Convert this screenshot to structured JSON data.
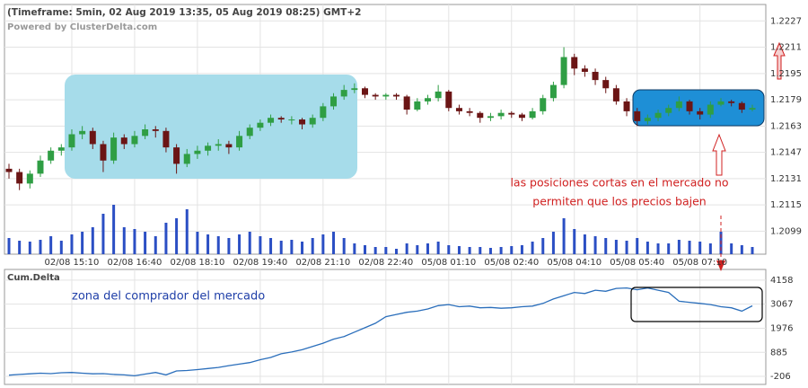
{
  "chart_data": [
    {
      "type": "candlestick",
      "title": "(Timeframe: 5min, 02 Aug 2019 13:35, 05 Aug 2019 08:25) GMT+2",
      "subtitle": "Powered by ClusterDelta.com",
      "annotations": [
        "las posiciones cortas en el mercado no",
        "permiten que los precios bajen"
      ],
      "categories": [
        null,
        null,
        null,
        null,
        null,
        null,
        "02/08 15:10",
        null,
        null,
        null,
        null,
        null,
        "02/08 16:40",
        null,
        null,
        null,
        null,
        null,
        "02/08 18:10",
        null,
        null,
        null,
        null,
        null,
        "02/08 19:40",
        null,
        null,
        null,
        null,
        null,
        "02/08 21:10",
        null,
        null,
        null,
        null,
        null,
        "02/08 22:40",
        null,
        null,
        null,
        null,
        null,
        "05/08 01:10",
        null,
        null,
        null,
        null,
        null,
        "05/08 02:40",
        null,
        null,
        null,
        null,
        null,
        "05/08 04:10",
        null,
        null,
        null,
        null,
        null,
        "05/08 05:40",
        null,
        null,
        null,
        null,
        null,
        "05/08 07:10",
        null,
        null,
        null,
        null,
        null
      ],
      "open": [
        1.2137,
        1.2135,
        1.2128,
        1.2134,
        1.2142,
        1.2148,
        1.215,
        1.2158,
        1.216,
        1.2152,
        1.2142,
        1.2156,
        1.2152,
        1.2157,
        1.2161,
        1.216,
        1.215,
        1.214,
        1.2146,
        1.2148,
        1.2151,
        1.2152,
        1.215,
        1.2157,
        1.2162,
        1.2165,
        1.2168,
        1.2167,
        1.2167,
        1.2164,
        1.2168,
        1.2175,
        1.2181,
        1.2185,
        1.2186,
        1.2182,
        1.2181,
        1.2182,
        1.2181,
        1.2173,
        1.2178,
        1.218,
        1.2184,
        1.2174,
        1.2172,
        1.2171,
        1.2168,
        1.2169,
        1.2171,
        1.217,
        1.2168,
        1.2172,
        1.218,
        1.2188,
        1.2205,
        1.2198,
        1.2196,
        1.2191,
        1.2186,
        1.2178,
        1.2172,
        1.2166,
        1.2168,
        1.2171,
        1.2174,
        1.2178,
        1.2172,
        1.217,
        1.2176,
        1.2178,
        1.2177,
        1.2173
      ],
      "high": [
        1.214,
        1.2137,
        1.2136,
        1.2145,
        1.215,
        1.2152,
        1.2161,
        1.2163,
        1.2162,
        1.2154,
        1.2159,
        1.2158,
        1.216,
        1.2164,
        1.2163,
        1.2162,
        1.2152,
        1.2149,
        1.2151,
        1.2153,
        1.2155,
        1.2154,
        1.216,
        1.2164,
        1.2167,
        1.217,
        1.2169,
        1.2169,
        1.2168,
        1.217,
        1.2177,
        1.2183,
        1.2188,
        1.2189,
        1.2187,
        1.2183,
        1.2183,
        1.2183,
        1.2182,
        1.218,
        1.2182,
        1.2188,
        1.2185,
        1.2176,
        1.2174,
        1.2172,
        1.2171,
        1.2173,
        1.2172,
        1.2171,
        1.2174,
        1.2182,
        1.219,
        1.2211,
        1.2207,
        1.22,
        1.2198,
        1.2193,
        1.2188,
        1.218,
        1.2174,
        1.217,
        1.2173,
        1.2176,
        1.2181,
        1.2179,
        1.2174,
        1.2178,
        1.218,
        1.2179,
        1.2178,
        1.2176
      ],
      "low": [
        1.2131,
        1.2124,
        1.2125,
        1.2132,
        1.214,
        1.2145,
        1.2148,
        1.2155,
        1.2149,
        1.2135,
        1.214,
        1.2149,
        1.215,
        1.2155,
        1.2156,
        1.2147,
        1.2134,
        1.2138,
        1.2143,
        1.2145,
        1.2148,
        1.2146,
        1.2148,
        1.2155,
        1.216,
        1.2163,
        1.2165,
        1.2164,
        1.2161,
        1.2162,
        1.2166,
        1.2173,
        1.2179,
        1.2183,
        1.218,
        1.2179,
        1.2179,
        1.2179,
        1.217,
        1.2172,
        1.2176,
        1.2178,
        1.2172,
        1.217,
        1.2169,
        1.2165,
        1.2166,
        1.2167,
        1.2168,
        1.2166,
        1.2167,
        1.217,
        1.2178,
        1.2186,
        1.2194,
        1.2193,
        1.2188,
        1.2183,
        1.2176,
        1.2169,
        1.2163,
        1.2164,
        1.2166,
        1.2169,
        1.2172,
        1.217,
        1.2167,
        1.2168,
        1.2175,
        1.2175,
        1.2171,
        1.2172
      ],
      "close": [
        1.2135,
        1.2128,
        1.2134,
        1.2142,
        1.2148,
        1.215,
        1.2158,
        1.216,
        1.2152,
        1.2142,
        1.2156,
        1.2152,
        1.2157,
        1.2161,
        1.216,
        1.215,
        1.214,
        1.2146,
        1.2148,
        1.2151,
        1.2152,
        1.215,
        1.2157,
        1.2162,
        1.2165,
        1.2168,
        1.2167,
        1.2167,
        1.2164,
        1.2168,
        1.2175,
        1.2181,
        1.2185,
        1.2186,
        1.2182,
        1.2181,
        1.2182,
        1.2181,
        1.2173,
        1.2178,
        1.218,
        1.2184,
        1.2174,
        1.2172,
        1.2171,
        1.2168,
        1.2169,
        1.2171,
        1.217,
        1.2168,
        1.2172,
        1.218,
        1.2188,
        1.2205,
        1.2198,
        1.2196,
        1.2191,
        1.2186,
        1.2178,
        1.2172,
        1.2166,
        1.2168,
        1.2171,
        1.2174,
        1.2178,
        1.2172,
        1.217,
        1.2176,
        1.2178,
        1.2177,
        1.2173,
        1.2174
      ],
      "up_color": "#2f9e44",
      "down_color": "#6b1515",
      "volume": {
        "values": [
          18,
          15,
          14,
          16,
          20,
          15,
          22,
          25,
          30,
          45,
          55,
          30,
          28,
          25,
          20,
          35,
          40,
          50,
          25,
          22,
          20,
          18,
          22,
          25,
          20,
          18,
          15,
          16,
          14,
          18,
          22,
          25,
          18,
          12,
          10,
          8,
          8,
          6,
          12,
          10,
          12,
          14,
          10,
          9,
          8,
          8,
          7,
          8,
          9,
          10,
          14,
          18,
          25,
          40,
          28,
          22,
          20,
          18,
          16,
          15,
          18,
          14,
          12,
          12,
          16,
          15,
          14,
          12,
          25,
          12,
          10,
          8
        ],
        "color": "#2b4fc4",
        "ylim": [
          0,
          100
        ]
      },
      "ylim": [
        1.2085,
        1.2237
      ],
      "yticks": [
        1.2099,
        1.2115,
        1.2131,
        1.2147,
        1.2163,
        1.2179,
        1.2195,
        1.2211,
        1.2227
      ],
      "grid": true
    },
    {
      "type": "line",
      "title": "Cum.Delta",
      "annotations": [
        "zona del comprador del mercado"
      ],
      "values": [
        -150,
        -120,
        -90,
        -60,
        -80,
        -40,
        -30,
        -60,
        -90,
        -80,
        -120,
        -140,
        -180,
        -100,
        -30,
        -140,
        40,
        60,
        100,
        150,
        200,
        280,
        350,
        420,
        550,
        650,
        820,
        900,
        1000,
        1150,
        1300,
        1480,
        1600,
        1800,
        2000,
        2200,
        2500,
        2600,
        2700,
        2750,
        2850,
        3000,
        3050,
        2950,
        2980,
        2900,
        2920,
        2880,
        2900,
        2950,
        2980,
        3100,
        3300,
        3450,
        3600,
        3550,
        3700,
        3650,
        3780,
        3800,
        3720,
        3800,
        3700,
        3600,
        3200,
        3150,
        3100,
        3050,
        2950,
        2900,
        2750,
        2990
      ],
      "color": "#2a6ebb",
      "ylim": [
        -570,
        4640
      ],
      "yticks": [
        -206,
        885,
        1976,
        3067,
        4158
      ],
      "grid": true
    }
  ]
}
